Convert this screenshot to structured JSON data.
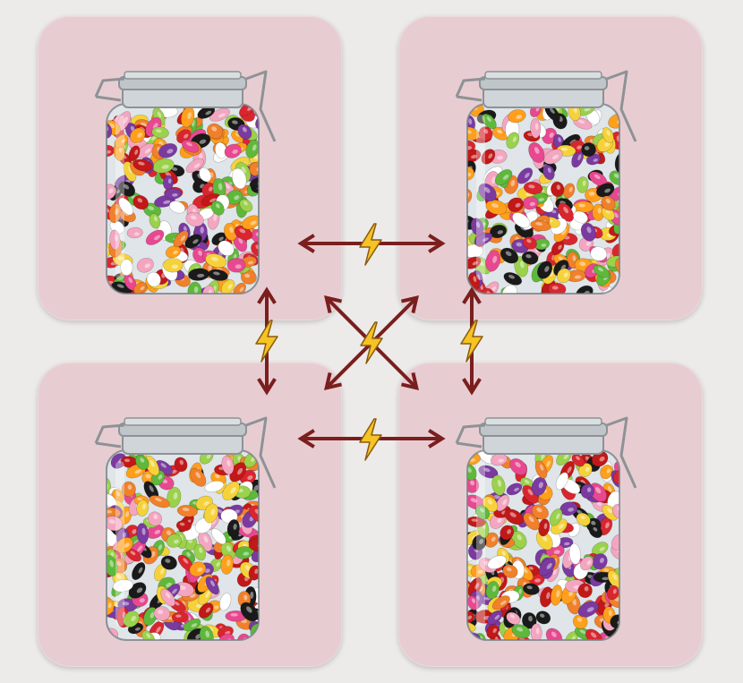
{
  "colors": {
    "background": "#ecebe9",
    "tile": "#e7cdd1",
    "arrow": "#7a1e1e",
    "bolt_fill": "#f6c324",
    "bolt_outline": "#8a5a10",
    "glass": "#dfe5e8",
    "lid_metal": "#8d9296"
  },
  "jars": [
    {
      "id": "top-left",
      "contents": "jelly-beans"
    },
    {
      "id": "top-right",
      "contents": "jelly-beans"
    },
    {
      "id": "bottom-left",
      "contents": "jelly-beans"
    },
    {
      "id": "bottom-right",
      "contents": "jelly-beans"
    }
  ],
  "connections": [
    {
      "from": "top-left",
      "to": "top-right",
      "kind": "bidirectional-arrow",
      "icon": "lightning-bolt-icon"
    },
    {
      "from": "bottom-left",
      "to": "bottom-right",
      "kind": "bidirectional-arrow",
      "icon": "lightning-bolt-icon"
    },
    {
      "from": "top-left",
      "to": "bottom-left",
      "kind": "bidirectional-arrow",
      "icon": "lightning-bolt-icon"
    },
    {
      "from": "top-right",
      "to": "bottom-right",
      "kind": "bidirectional-arrow",
      "icon": "lightning-bolt-icon"
    },
    {
      "from": "top-left",
      "to": "bottom-right",
      "kind": "bidirectional-arrow",
      "icon": "lightning-bolt-icon"
    },
    {
      "from": "top-right",
      "to": "bottom-left",
      "kind": "bidirectional-arrow",
      "icon": "lightning-bolt-icon"
    }
  ],
  "bean_palette": [
    "#d9262e",
    "#f0802a",
    "#f6d23a",
    "#5fb83b",
    "#ffffff",
    "#e8488f",
    "#7a3aa0",
    "#1a1a1a",
    "#f4a6c0",
    "#c21818",
    "#ff9f1c",
    "#9bd14b"
  ]
}
